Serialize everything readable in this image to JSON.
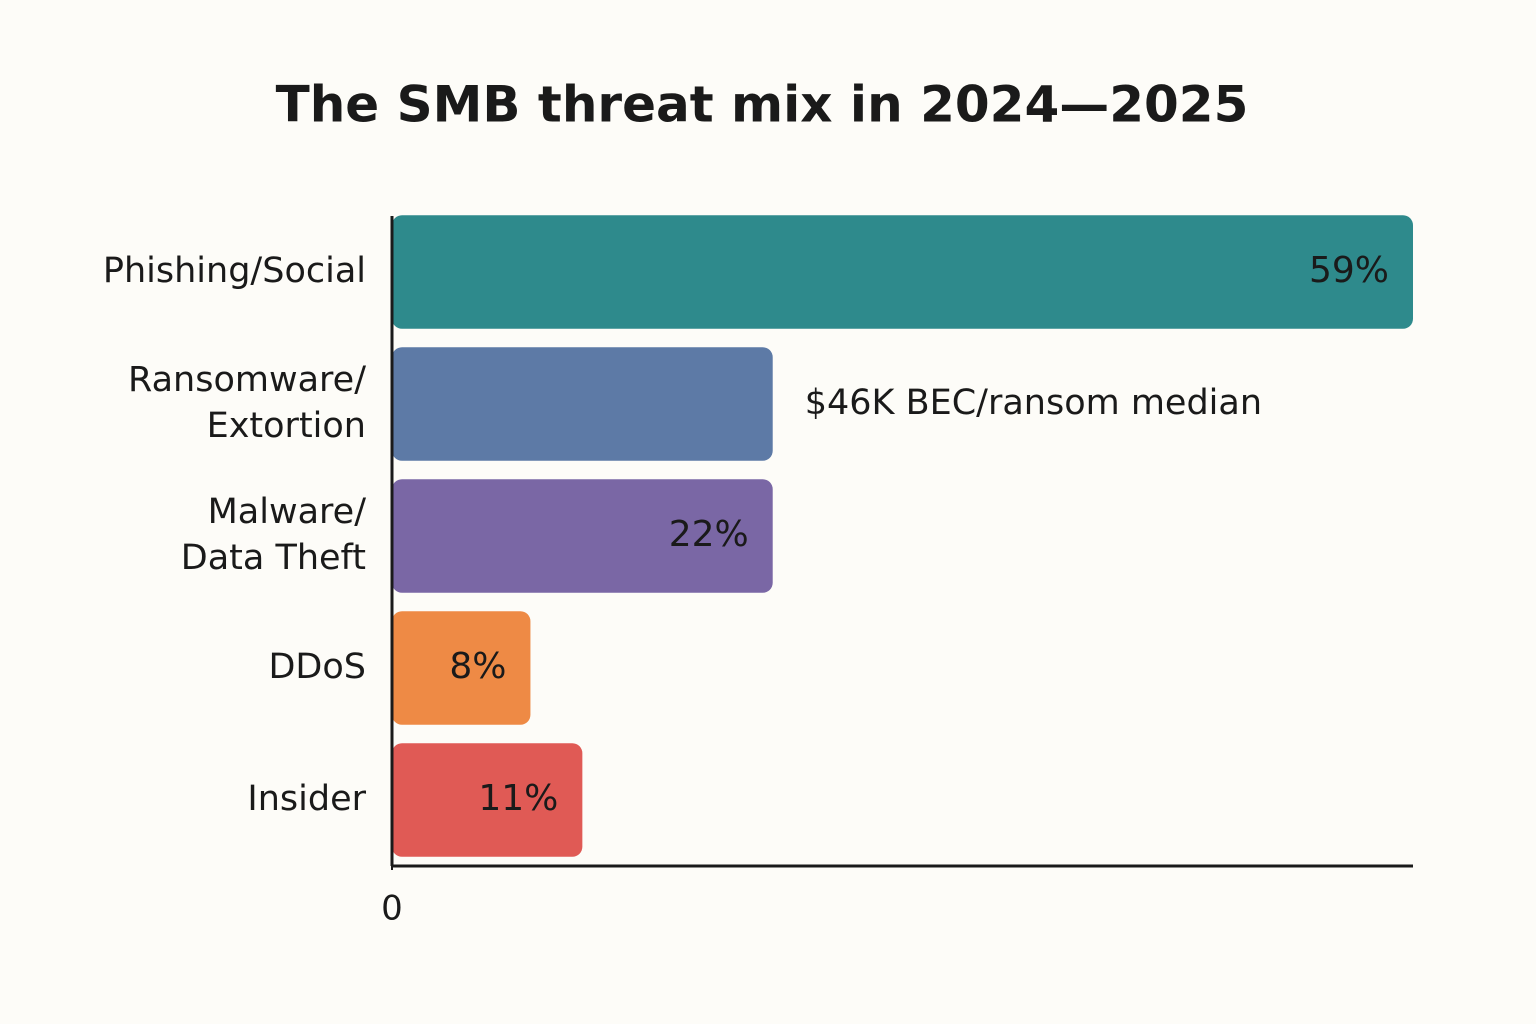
{
  "chart_data": {
    "type": "bar",
    "orientation": "horizontal",
    "title": "The SMB threat mix in 2024—2025",
    "categories": [
      "Phishing/Social",
      "Ransomware/\nExtortion",
      "Malware/\nData Theft",
      "DDoS",
      "Insider"
    ],
    "values": [
      59,
      22,
      22,
      8,
      11
    ],
    "value_labels": [
      "59%",
      null,
      "22%",
      "8%",
      "11%"
    ],
    "colors": [
      "#2e8a8c",
      "#5d7aa6",
      "#7a67a5",
      "#ee8a45",
      "#e05a55"
    ],
    "annotation": "$46K BEC/ransom median",
    "xlim": [
      0,
      59
    ],
    "xticks": [
      0
    ]
  }
}
